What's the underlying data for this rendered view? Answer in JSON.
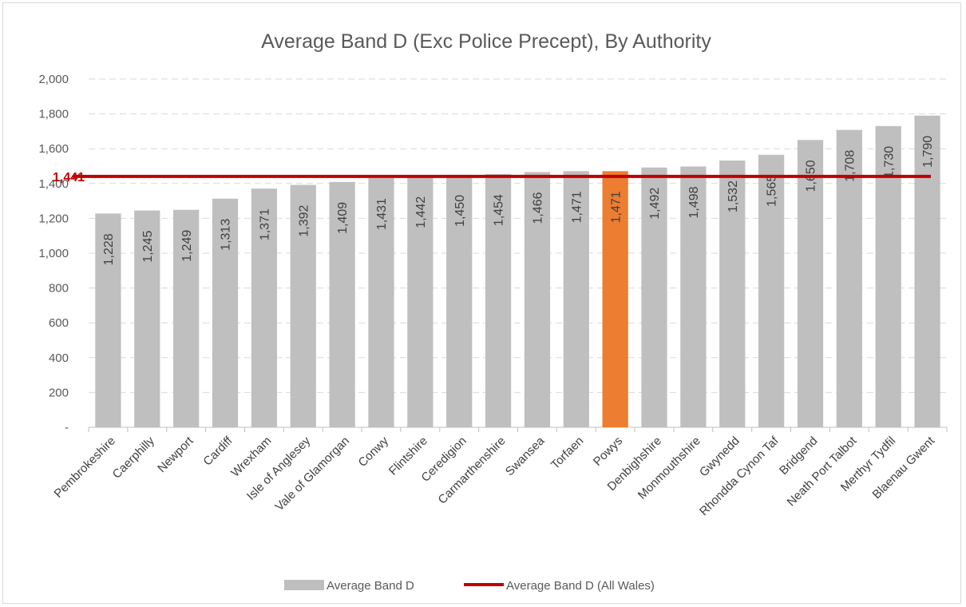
{
  "chart_data": {
    "type": "bar",
    "title": "Average Band D (Exc Police Precept), By Authority",
    "xlabel": "",
    "ylabel": "",
    "ylim": [
      0,
      2000
    ],
    "yticks": [
      0,
      200,
      400,
      600,
      800,
      1000,
      1200,
      1400,
      1600,
      1800,
      2000
    ],
    "ytick_labels": [
      "-",
      "200",
      "400",
      "600",
      "800",
      "1,000",
      "1,200",
      "1,400",
      "1,600",
      "1,800",
      "2,000"
    ],
    "grid": "horizontal dashed",
    "categories": [
      "Pembrokeshire",
      "Caerphilly",
      "Newport",
      "Cardiff",
      "Wrexham",
      "Isle of Anglesey",
      "Vale of Glamorgan",
      "Conwy",
      "Flintshire",
      "Ceredigion",
      "Carmarthenshire",
      "Swansea",
      "Torfaen",
      "Powys",
      "Denbighshire",
      "Monmouthshire",
      "Gwynedd",
      "Rhondda Cynon Taf",
      "Bridgend",
      "Neath Port Talbot",
      "Merthyr Tydfil",
      "Blaenau Gwent"
    ],
    "series": [
      {
        "name": "Average Band D",
        "values": [
          1228,
          1245,
          1249,
          1313,
          1371,
          1392,
          1409,
          1431,
          1442,
          1450,
          1454,
          1466,
          1471,
          1471,
          1492,
          1498,
          1532,
          1565,
          1650,
          1708,
          1730,
          1790
        ],
        "value_labels": [
          "1,228",
          "1,245",
          "1,249",
          "1,313",
          "1,371",
          "1,392",
          "1,409",
          "1,431",
          "1,442",
          "1,450",
          "1,454",
          "1,466",
          "1,471",
          "1,471",
          "1,492",
          "1,498",
          "1,532",
          "1,565",
          "1,650",
          "1,708",
          "1,730",
          "1,790"
        ],
        "color": "#bfbfbf",
        "highlight": {
          "category": "Powys",
          "color": "#ed7d31"
        }
      },
      {
        "name": "Average Band D (All Wales)",
        "type": "line",
        "value": 1441,
        "value_label": "1,441",
        "color": "#c00000"
      }
    ],
    "legend": {
      "placement": "bottom",
      "entries": [
        "Average Band D",
        "Average Band D (All Wales)"
      ]
    }
  }
}
